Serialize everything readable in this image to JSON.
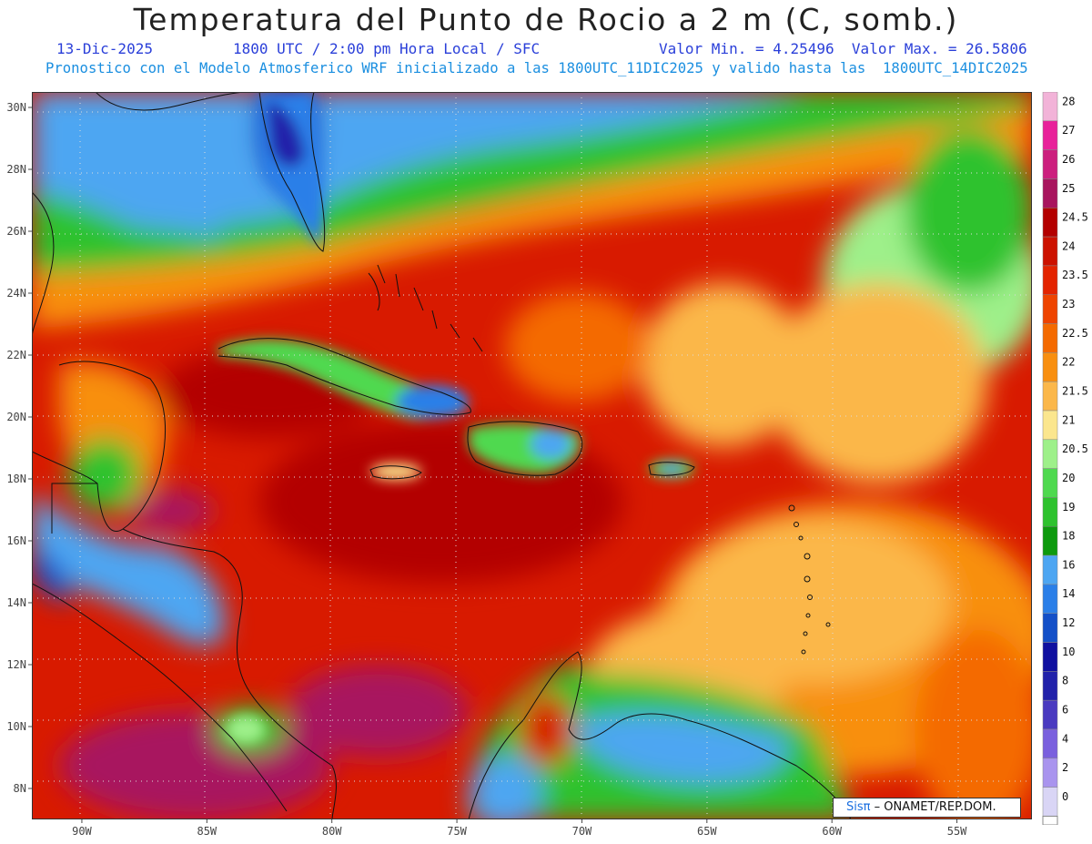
{
  "header": {
    "title": "Temperatura del Punto de Rocio a 2 m (C, somb.)",
    "date": "13-Dic-2025",
    "time": "1800 UTC / 2:00 pm Hora Local / SFC",
    "minmax": "Valor Min. = 4.25496  Valor Max. = 26.5806",
    "model_line": "Pronostico con el Modelo Atmosferico WRF inicializado a las 1800UTC_11DIC2025 y valido hasta las  1800UTC_14DIC2025"
  },
  "map": {
    "lon_labels": [
      "90W",
      "85W",
      "80W",
      "75W",
      "70W",
      "65W",
      "60W",
      "55W"
    ],
    "lat_labels": [
      "30N",
      "28N",
      "26N",
      "24N",
      "22N",
      "20N",
      "18N",
      "16N",
      "14N",
      "12N",
      "10N",
      "8N"
    ],
    "lon_range": [
      -92,
      -52
    ],
    "lat_range": [
      7,
      30.5
    ],
    "value_min": 4.25496,
    "value_max": 26.5806
  },
  "legend": {
    "labels": [
      "28",
      "27",
      "26",
      "25",
      "24.5",
      "24",
      "23.5",
      "23",
      "22.5",
      "22",
      "21.5",
      "21",
      "20.5",
      "20",
      "19",
      "18",
      "16",
      "14",
      "12",
      "10",
      "8",
      "6",
      "4",
      "2",
      "0"
    ],
    "colors": [
      "#f2b3d8",
      "#e8229a",
      "#cc1f7e",
      "#a8155e",
      "#b30000",
      "#cc1200",
      "#e32400",
      "#ee4400",
      "#f46a00",
      "#f88f10",
      "#fbb74a",
      "#fbe68e",
      "#9ef08a",
      "#4fd94f",
      "#2ec22e",
      "#0e9a0e",
      "#4ea6f2",
      "#2b7fe8",
      "#1450c8",
      "#1010a0",
      "#2222aa",
      "#4a3ac0",
      "#7a60de",
      "#a994ee",
      "#d9d5f5"
    ]
  },
  "credit": {
    "brand": "Sisπ",
    "text": " – ONAMET/REP.DOM."
  }
}
